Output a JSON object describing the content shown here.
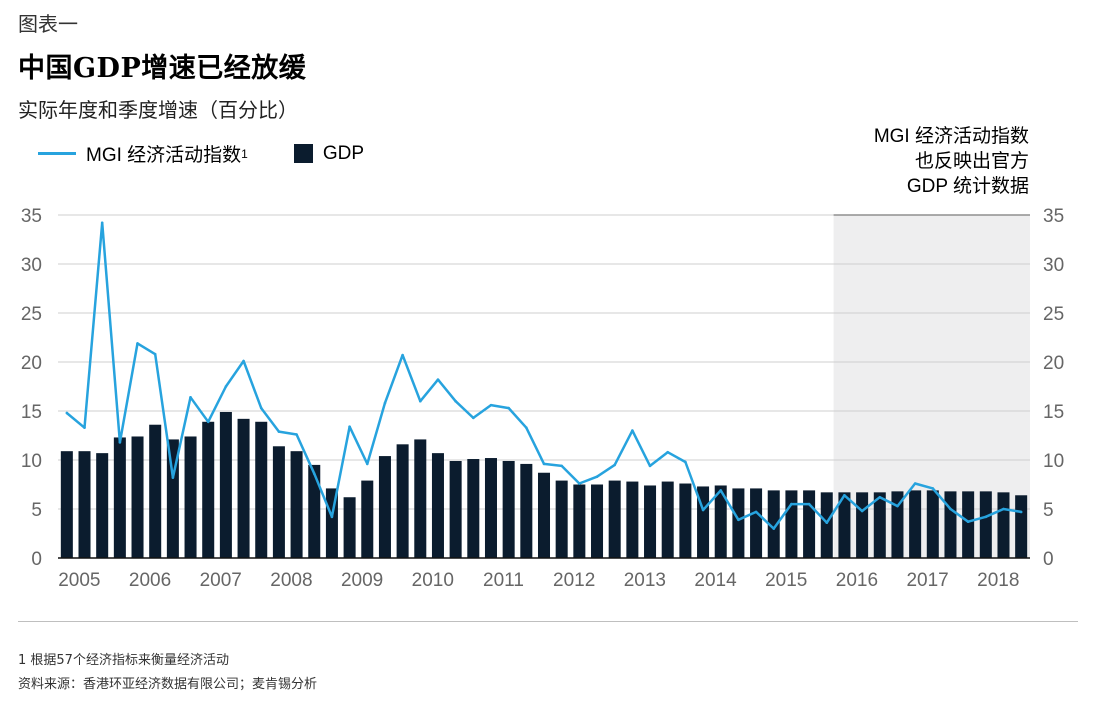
{
  "header": {
    "figure_label": "图表一",
    "title": "中国GDP增速已经放缓",
    "subtitle": "实际年度和季度增速（百分比）"
  },
  "legend": {
    "mgi_label": "MGI 经济活动指数",
    "mgi_sup": "1",
    "gdp_label": "GDP"
  },
  "note": {
    "line1": "MGI 经济活动指数",
    "line2": "也反映出官方",
    "line3": "GDP 统计数据"
  },
  "colors": {
    "bar": "#0b1c2e",
    "line": "#27a3de",
    "shade": "#eeeeef",
    "grid": "#cfcfcf",
    "tick": "#666666"
  },
  "chart_data": {
    "type": "bar",
    "y_ticks": [
      0,
      5,
      10,
      15,
      20,
      25,
      30,
      35
    ],
    "ylim": [
      0,
      35
    ],
    "x_tick_labels": [
      "2005",
      "2006",
      "2007",
      "2008",
      "2009",
      "2010",
      "2011",
      "2012",
      "2013",
      "2014",
      "2015",
      "2016",
      "2017",
      "2018"
    ],
    "shaded_from_index": 44,
    "series": [
      {
        "name": "GDP",
        "type": "bar",
        "values": [
          10.9,
          10.9,
          10.7,
          12.3,
          12.4,
          13.6,
          12.1,
          12.4,
          13.9,
          14.9,
          14.2,
          13.9,
          11.4,
          10.9,
          9.5,
          7.1,
          6.2,
          7.9,
          10.4,
          11.6,
          12.1,
          10.7,
          9.9,
          10.1,
          10.2,
          9.9,
          9.6,
          8.7,
          7.9,
          7.5,
          7.5,
          7.9,
          7.8,
          7.4,
          7.8,
          7.6,
          7.3,
          7.4,
          7.1,
          7.1,
          6.9,
          6.9,
          6.9,
          6.7,
          6.7,
          6.7,
          6.7,
          6.8,
          6.9,
          6.9,
          6.8,
          6.8,
          6.8,
          6.7,
          6.4
        ]
      },
      {
        "name": "MGI 经济活动指数",
        "type": "line",
        "values": [
          14.8,
          13.3,
          34.2,
          11.8,
          21.9,
          20.8,
          8.2,
          16.4,
          13.9,
          17.5,
          20.1,
          15.3,
          12.9,
          12.6,
          8.6,
          4.2,
          13.4,
          9.6,
          15.8,
          20.7,
          16.0,
          18.2,
          16.0,
          14.3,
          15.6,
          15.3,
          13.3,
          9.6,
          9.4,
          7.6,
          8.3,
          9.5,
          13.0,
          9.4,
          10.8,
          9.8,
          4.9,
          6.9,
          3.9,
          4.7,
          3.0,
          5.5,
          5.5,
          3.6,
          6.4,
          4.8,
          6.2,
          5.3,
          7.6,
          7.1,
          5.0,
          3.7,
          4.2,
          5.0,
          4.7
        ]
      }
    ]
  },
  "footer": {
    "footnote": "1 根据57个经济指标来衡量经济活动",
    "source": "资料来源：香港环亚经济数据有限公司；麦肯锡分析"
  }
}
